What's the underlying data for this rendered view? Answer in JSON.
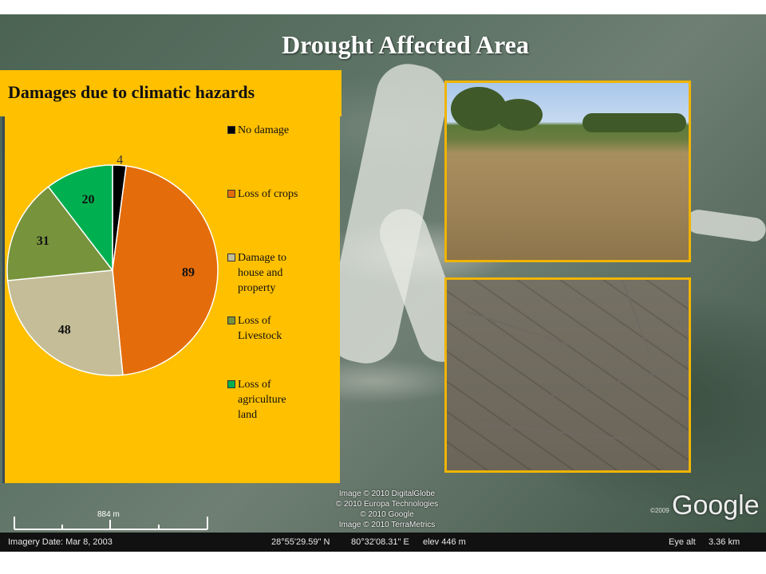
{
  "page": {
    "title": "Drought Affected Area"
  },
  "chart_data": {
    "type": "pie",
    "title": "Damages due to climatic hazards",
    "slices": [
      {
        "label": "No damage",
        "value": 4,
        "color": "#000000"
      },
      {
        "label": "Loss of crops",
        "value": 89,
        "color": "#e46c0a"
      },
      {
        "label": "Damage to house and property",
        "value": 48,
        "color": "#c4bd97"
      },
      {
        "label": "Loss of Livestock",
        "value": 31,
        "color": "#77933c"
      },
      {
        "label": "Loss of agriculture land",
        "value": 20,
        "color": "#00b050"
      }
    ],
    "legend": {
      "placement": "right",
      "entries": [
        {
          "lines": [
            "No damage"
          ],
          "color": "#000000"
        },
        {
          "lines": [
            "Loss of crops"
          ],
          "color": "#e46c0a"
        },
        {
          "lines": [
            "Damage to",
            "house and",
            "property"
          ],
          "color": "#c4bd97"
        },
        {
          "lines": [
            "Loss of",
            "Livestock"
          ],
          "color": "#77933c"
        },
        {
          "lines": [
            "Loss of",
            "agriculture",
            "land"
          ],
          "color": "#00b050"
        }
      ]
    },
    "background": "#ffc000"
  },
  "photos": [
    {
      "name": "dry-field-photo"
    },
    {
      "name": "cracked-soil-photo"
    }
  ],
  "map": {
    "credits": [
      "Image © 2010 DigitalGlobe",
      "© 2010 Europa Technologies",
      "© 2010 Google",
      "Image © 2010 TerraMetrics"
    ],
    "logo": "Google",
    "copyright_year": "©2009",
    "scale_label": "884 m",
    "imagery_date": "Imagery Date: Mar 8, 2003",
    "latitude": "28°55'29.59\" N",
    "longitude": "80°32'08.31\" E",
    "elevation": "elev 446 m",
    "eye_alt_label": "Eye alt",
    "eye_alt_value": "3.36 km"
  }
}
